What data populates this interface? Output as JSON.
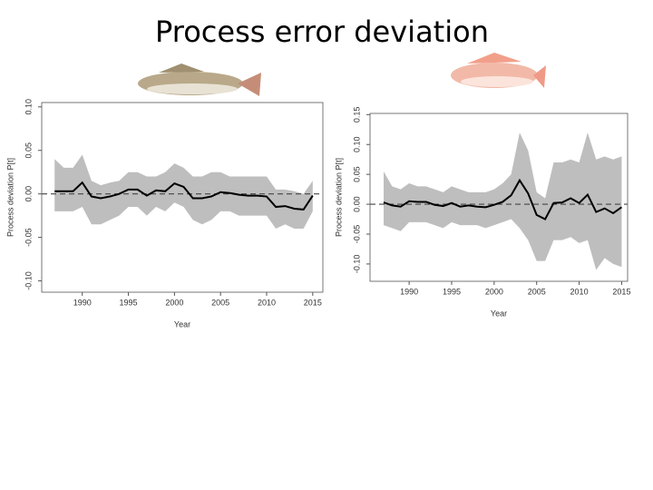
{
  "title": "Process error deviation",
  "chart_data": [
    {
      "type": "line",
      "x_label": "Year",
      "y_label": "Process deviation P[t]",
      "x": [
        1987,
        1988,
        1989,
        1990,
        1991,
        1992,
        1993,
        1994,
        1995,
        1996,
        1997,
        1998,
        1999,
        2000,
        2001,
        2002,
        2003,
        2004,
        2005,
        2006,
        2007,
        2008,
        2009,
        2010,
        2011,
        2012,
        2013,
        2014,
        2015
      ],
      "series": [
        {
          "color": "#000000",
          "values": [
            0.003,
            0.003,
            0.003,
            0.013,
            -0.003,
            -0.005,
            -0.003,
            0,
            0.005,
            0.005,
            -0.002,
            0.004,
            0.003,
            0.012,
            0.008,
            -0.005,
            -0.005,
            -0.003,
            0.002,
            0.001,
            -0.001,
            -0.002,
            -0.002,
            -0.003,
            -0.015,
            -0.014,
            -0.017,
            -0.018,
            -0.002
          ]
        }
      ],
      "band": {
        "color": "#bebebe",
        "upper": [
          0.04,
          0.03,
          0.03,
          0.045,
          0.015,
          0.01,
          0.013,
          0.015,
          0.025,
          0.025,
          0.02,
          0.02,
          0.025,
          0.035,
          0.03,
          0.02,
          0.02,
          0.025,
          0.025,
          0.02,
          0.02,
          0.02,
          0.02,
          0.02,
          0.005,
          0.005,
          0.003,
          0,
          0.015
        ],
        "lower": [
          -0.02,
          -0.02,
          -0.02,
          -0.015,
          -0.035,
          -0.035,
          -0.03,
          -0.025,
          -0.015,
          -0.015,
          -0.025,
          -0.015,
          -0.02,
          -0.01,
          -0.015,
          -0.03,
          -0.035,
          -0.03,
          -0.02,
          -0.02,
          -0.025,
          -0.025,
          -0.025,
          -0.025,
          -0.04,
          -0.035,
          -0.04,
          -0.04,
          -0.02
        ]
      },
      "hline": 0,
      "xlim": [
        1985.6,
        2016.1
      ],
      "ylim": [
        -0.113,
        0.105
      ],
      "xticks": [
        1990,
        1995,
        2000,
        2005,
        2010,
        2015
      ],
      "yticks": [
        {
          "value": -0.1,
          "label": "-0.10"
        },
        {
          "value": -0.05,
          "label": "-0.05"
        },
        {
          "value": 0,
          "label": "0.00"
        },
        {
          "value": 0.05,
          "label": "0.05"
        },
        {
          "value": 0.1,
          "label": "0.10"
        }
      ]
    },
    {
      "type": "line",
      "x_label": "Year",
      "y_label": "Process deviation P[t]",
      "x": [
        1987,
        1988,
        1989,
        1990,
        1991,
        1992,
        1993,
        1994,
        1995,
        1996,
        1997,
        1998,
        1999,
        2000,
        2001,
        2002,
        2003,
        2004,
        2005,
        2006,
        2007,
        2008,
        2009,
        2010,
        2011,
        2012,
        2013,
        2014,
        2015
      ],
      "series": [
        {
          "color": "#000000",
          "values": [
            0.003,
            -0.002,
            -0.004,
            0.005,
            0.004,
            0.004,
            -0.001,
            -0.003,
            0.002,
            -0.004,
            -0.002,
            -0.004,
            -0.005,
            -0.001,
            0.004,
            0.015,
            0.04,
            0.018,
            -0.018,
            -0.025,
            0.002,
            0.003,
            0.01,
            0.002,
            0.016,
            -0.013,
            -0.007,
            -0.015,
            -0.005
          ]
        }
      ],
      "band": {
        "color": "#bebebe",
        "upper": [
          0.055,
          0.03,
          0.025,
          0.035,
          0.03,
          0.03,
          0.025,
          0.02,
          0.03,
          0.025,
          0.02,
          0.02,
          0.02,
          0.025,
          0.035,
          0.05,
          0.12,
          0.09,
          0.02,
          0.01,
          0.07,
          0.07,
          0.075,
          0.07,
          0.12,
          0.075,
          0.08,
          0.075,
          0.08
        ],
        "lower": [
          -0.035,
          -0.04,
          -0.045,
          -0.03,
          -0.03,
          -0.03,
          -0.035,
          -0.04,
          -0.03,
          -0.035,
          -0.035,
          -0.035,
          -0.04,
          -0.035,
          -0.03,
          -0.025,
          -0.04,
          -0.06,
          -0.095,
          -0.095,
          -0.06,
          -0.06,
          -0.055,
          -0.065,
          -0.06,
          -0.11,
          -0.09,
          -0.1,
          -0.105
        ]
      },
      "hline": 0,
      "xlim": [
        1985.4,
        2015.7
      ],
      "ylim": [
        -0.129,
        0.152
      ],
      "xticks": [
        1990,
        1995,
        2000,
        2005,
        2010,
        2015
      ],
      "yticks": [
        {
          "value": -0.1,
          "label": "-0.10"
        },
        {
          "value": -0.05,
          "label": "-0.05"
        },
        {
          "value": 0,
          "label": "0.00"
        },
        {
          "value": 0.05,
          "label": "0.05"
        },
        {
          "value": 0.1,
          "label": "0.10"
        },
        {
          "value": 0.15,
          "label": "0.15"
        }
      ]
    }
  ]
}
